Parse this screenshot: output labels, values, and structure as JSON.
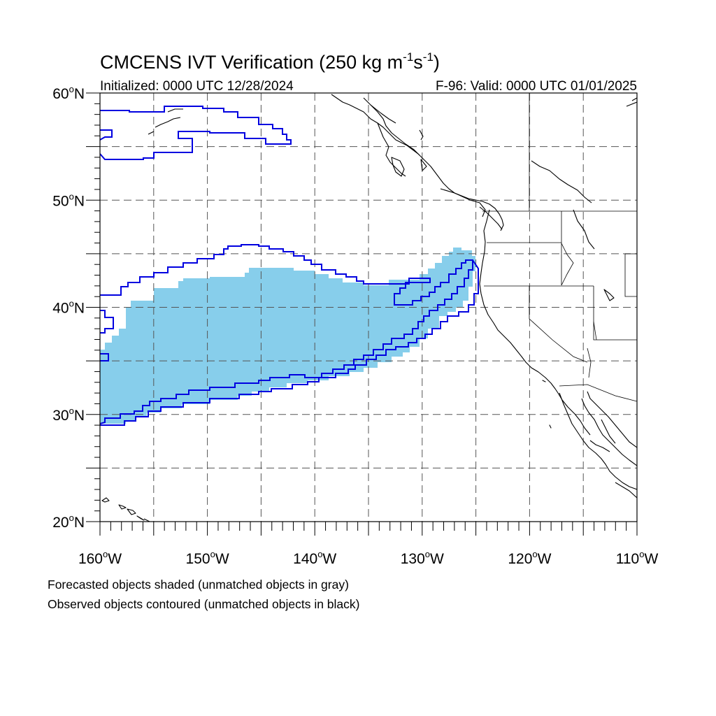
{
  "title": {
    "text": "CMCENS IVT Verification (250 kg m",
    "sup1": "-1",
    "mid": "s",
    "sup2": "-1",
    "end": ")"
  },
  "initialized": "Initialized: 0000 UTC 12/28/2024",
  "valid": "F-96: Valid: 0000 UTC 01/01/2025",
  "axes": {
    "lon_range": [
      -160,
      -110
    ],
    "lat_range": [
      20,
      60
    ],
    "lat_ticks": [
      {
        "value": 60,
        "label": "60",
        "suffix": "N"
      },
      {
        "value": 50,
        "label": "50",
        "suffix": "N"
      },
      {
        "value": 40,
        "label": "40",
        "suffix": "N"
      },
      {
        "value": 30,
        "label": "30",
        "suffix": "N"
      },
      {
        "value": 20,
        "label": "20",
        "suffix": "N"
      }
    ],
    "lon_ticks": [
      {
        "value": -160,
        "label": "160",
        "suffix": "W"
      },
      {
        "value": -150,
        "label": "150",
        "suffix": "W"
      },
      {
        "value": -140,
        "label": "140",
        "suffix": "W"
      },
      {
        "value": -130,
        "label": "130",
        "suffix": "W"
      },
      {
        "value": -120,
        "label": "120",
        "suffix": "W"
      },
      {
        "value": -110,
        "label": "110",
        "suffix": "W"
      }
    ],
    "grid_spacing_deg": 5,
    "grid_style": "dashed"
  },
  "footer": {
    "line1": "Forecasted objects shaded (unmatched objects in gray)",
    "line2": "Observed objects contoured (unmatched objects in black)"
  },
  "colors": {
    "forecast_fill": "#87ceeb",
    "observed_contour": "#0000e0",
    "grid": "#555555",
    "coast": "#000000"
  }
}
